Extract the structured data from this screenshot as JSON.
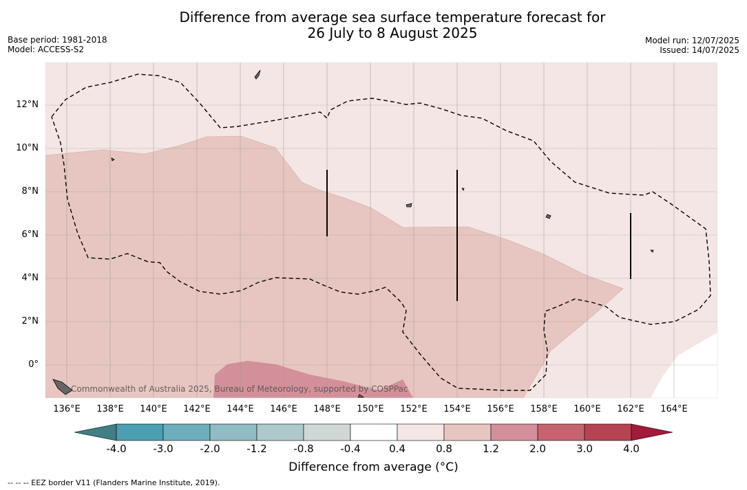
{
  "title_line1": "Difference from average sea surface temperature forecast for",
  "title_line2": "26 July to 8 August 2025",
  "meta_left": {
    "base_period": "Base period: 1981-2018",
    "model": "Model: ACCESS-S2"
  },
  "meta_right": {
    "model_run": "Model run: 12/07/2025",
    "issued": "Issued: 14/07/2025"
  },
  "map": {
    "lat_labels": [
      "12°N",
      "10°N",
      "8°N",
      "6°N",
      "4°N",
      "2°N",
      "0°"
    ],
    "lon_labels": [
      "136°E",
      "138°E",
      "140°E",
      "142°E",
      "144°E",
      "146°E",
      "148°E",
      "150°E",
      "152°E",
      "154°E",
      "156°E",
      "158°E",
      "160°E",
      "162°E",
      "164°E"
    ],
    "copyright": "Commonwealth of Australia 2025, Bureau of Meteorology, supported by COSPPac",
    "fill_colors": {
      "0.4_to_0.8": "#f4e6e4",
      "0.8_to_1.2": "#e7c6c1",
      "1.2_to_2.0": "#d4909a"
    }
  },
  "colorbar": {
    "tick_labels": [
      "-4.0",
      "-3.0",
      "-2.0",
      "-1.2",
      "-0.8",
      "-0.4",
      "0.4",
      "0.8",
      "1.2",
      "2.0",
      "3.0",
      "4.0"
    ],
    "colors": [
      "#3f7f85",
      "#4aa0b2",
      "#6eaebc",
      "#8fbcc5",
      "#aec9cc",
      "#cfd8d7",
      "#ffffff",
      "#f4e6e4",
      "#e7c6c1",
      "#d4909a",
      "#c7636e",
      "#b74352",
      "#a21b3a"
    ],
    "label": "Difference from average (°C)"
  },
  "footnote": "--  --  -- EEZ border V11 (Flanders Marine Institute, 2019)."
}
